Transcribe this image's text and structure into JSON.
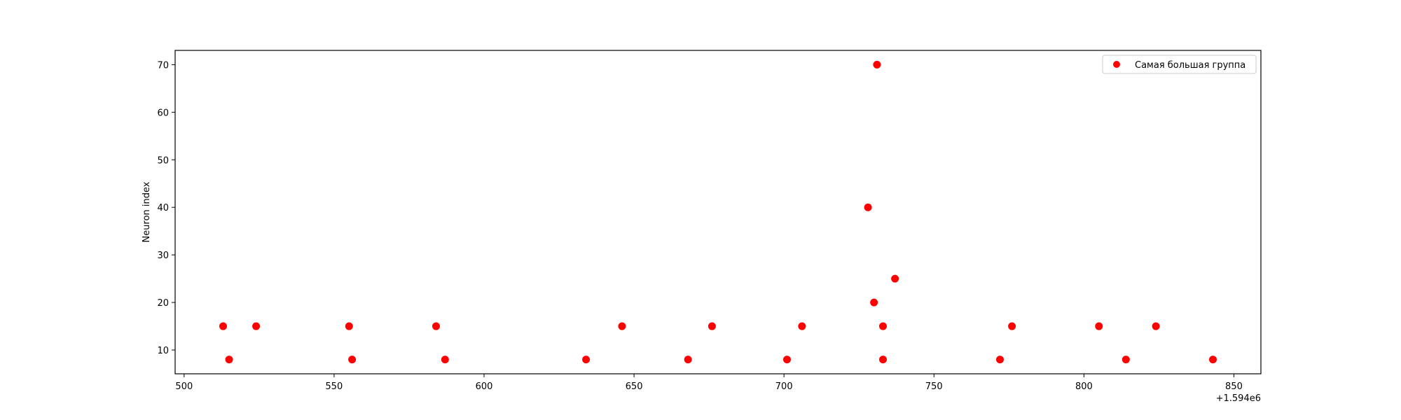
{
  "chart_data": {
    "type": "scatter",
    "title": "",
    "xlabel": "",
    "ylabel": "Neuron index",
    "x_offset_label": "+1.594e6",
    "xlim": [
      497,
      859
    ],
    "ylim": [
      5,
      73
    ],
    "x_ticks": [
      500,
      550,
      600,
      650,
      700,
      750,
      800,
      850
    ],
    "y_ticks": [
      10,
      20,
      30,
      40,
      50,
      60,
      70
    ],
    "grid": false,
    "legend_position": "top-right",
    "series": [
      {
        "name": "Самая большая группа",
        "color": "#ff0000",
        "points": [
          [
            513,
            15
          ],
          [
            515,
            8
          ],
          [
            524,
            15
          ],
          [
            555,
            15
          ],
          [
            556,
            8
          ],
          [
            584,
            15
          ],
          [
            587,
            8
          ],
          [
            634,
            8
          ],
          [
            646,
            15
          ],
          [
            668,
            8
          ],
          [
            676,
            15
          ],
          [
            701,
            8
          ],
          [
            706,
            15
          ],
          [
            728,
            40
          ],
          [
            730,
            20
          ],
          [
            731,
            70
          ],
          [
            733,
            15
          ],
          [
            733,
            8
          ],
          [
            737,
            25
          ],
          [
            772,
            8
          ],
          [
            776,
            15
          ],
          [
            805,
            15
          ],
          [
            814,
            8
          ],
          [
            824,
            15
          ],
          [
            843,
            8
          ]
        ]
      }
    ]
  }
}
